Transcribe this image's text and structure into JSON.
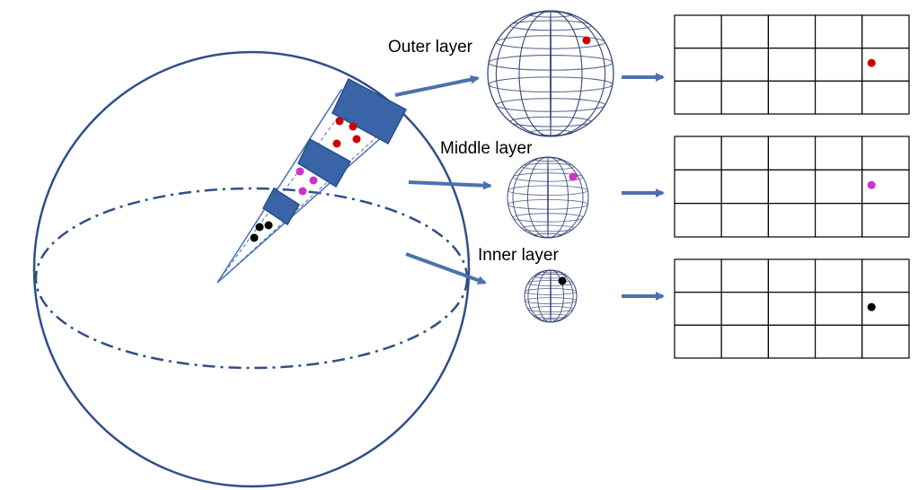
{
  "layers": [
    {
      "id": "outer",
      "label": "Outer layer",
      "point_color": "#cc0000",
      "grid_cell": {
        "row": 2,
        "col": 4
      }
    },
    {
      "id": "middle",
      "label": "Middle layer",
      "point_color": "#cc33cc",
      "grid_cell": {
        "row": 2,
        "col": 4
      }
    },
    {
      "id": "inner",
      "label": "Inner layer",
      "point_color": "#000000",
      "grid_cell": {
        "row": 2,
        "col": 4
      }
    }
  ],
  "grid": {
    "rows": 3,
    "cols": 5
  },
  "colors": {
    "sphere_outline": "#2f4f86",
    "wedge_block": "#3a64a8",
    "arrow": "#4a72b0",
    "globe_line": "#3a4a7a",
    "grid_line": "#000000"
  }
}
